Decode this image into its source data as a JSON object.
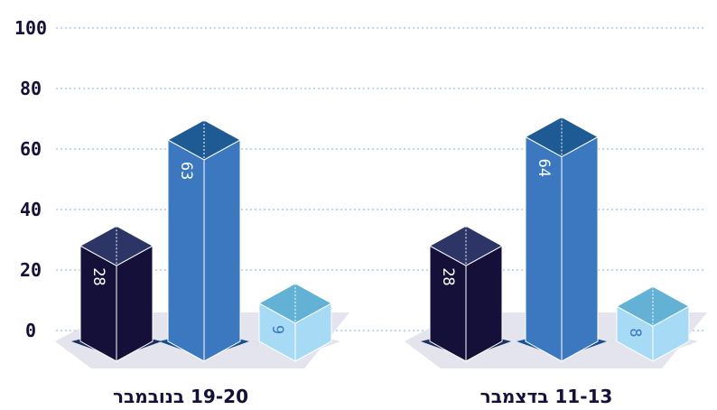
{
  "chart_data": {
    "type": "bar",
    "ylim": [
      0,
      100
    ],
    "yticks": [
      0,
      20,
      40,
      60,
      80,
      100
    ],
    "grid": true,
    "groups": [
      {
        "label": "19-20 בנובמבר",
        "values": [
          28,
          63,
          9
        ]
      },
      {
        "label": "11-13 בדצמבר",
        "values": [
          28,
          64,
          8
        ]
      }
    ],
    "series_colors": [
      {
        "front": "#15103a",
        "top": "#2d3466",
        "floor": "#1c2f5f"
      },
      {
        "front": "#3b78c0",
        "top": "#1e5a93",
        "floor": "#17528f"
      },
      {
        "front": "#a7dbf5",
        "top": "#63b2d6",
        "floor": "#e2e2ee"
      }
    ]
  }
}
